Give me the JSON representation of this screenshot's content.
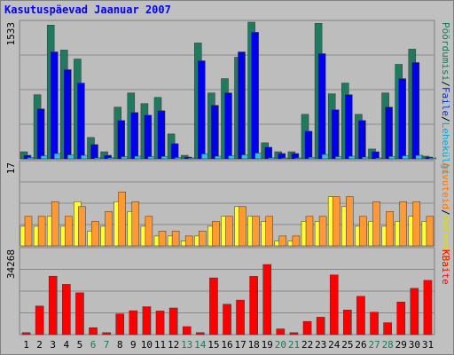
{
  "chart_data": {
    "type": "bar",
    "title": "Kasutuspäevad Jaanuar 2007",
    "categories": [
      "1",
      "2",
      "3",
      "4",
      "5",
      "6",
      "7",
      "8",
      "9",
      "10",
      "11",
      "12",
      "13",
      "14",
      "15",
      "16",
      "17",
      "18",
      "19",
      "20",
      "21",
      "22",
      "23",
      "24",
      "25",
      "26",
      "27",
      "28",
      "29",
      "30",
      "31"
    ],
    "weekend_days": [
      "6",
      "7",
      "13",
      "14",
      "20",
      "21",
      "27",
      "28"
    ],
    "panels": [
      {
        "id": "visits",
        "ymax_label": "1533",
        "ymax": 1533,
        "right_label_parts": [
          {
            "text": "Pöördumisi",
            "color": "#1a7a55"
          },
          {
            "text": "/",
            "color": "#000000"
          },
          {
            "text": "Faile",
            "color": "#0033cc"
          },
          {
            "text": "/",
            "color": "#000000"
          },
          {
            "text": "Lehekülgi",
            "color": "#00aadd"
          }
        ],
        "series": [
          {
            "values": [
              80,
              720,
              1500,
              1220,
              1120,
              240,
              80,
              580,
              740,
              620,
              690,
              280,
              40,
              1300,
              740,
              900,
              1140,
              1533,
              180,
              80,
              80,
              500,
              1520,
              730,
              850,
              500,
              110,
              740,
              1060,
              1230,
              30
            ],
            "color": "#1f7a60"
          },
          {
            "values": [
              40,
              560,
              1200,
              1000,
              850,
              160,
              40,
              430,
              520,
              490,
              540,
              170,
              20,
              1100,
              600,
              740,
              1200,
              1420,
              130,
              60,
              60,
              310,
              1180,
              550,
              720,
              430,
              80,
              580,
              900,
              1080,
              20
            ],
            "color": "#0000ee"
          },
          {
            "values": [
              15,
              35,
              60,
              45,
              40,
              12,
              12,
              25,
              30,
              25,
              28,
              15,
              8,
              55,
              30,
              35,
              45,
              65,
              12,
              8,
              8,
              18,
              50,
              25,
              30,
              20,
              10,
              28,
              35,
              40,
              5
            ],
            "color": "#33bbee"
          }
        ]
      },
      {
        "id": "hosts",
        "ymax_label": "17",
        "ymax": 17,
        "right_label_parts": [
          {
            "text": "Arvuteid",
            "color": "#ff7700"
          },
          {
            "text": "/",
            "color": "#000000"
          },
          {
            "text": "Külastusi",
            "color": "#dddd00"
          }
        ],
        "series": [
          {
            "values": [
              4,
              4,
              6,
              4,
              9,
              3,
              4,
              9,
              7,
              4,
              2,
              2,
              1,
              2,
              4,
              6,
              8,
              6,
              5,
              1,
              1,
              5,
              5,
              10,
              8,
              4,
              5,
              4,
              5,
              6,
              5
            ],
            "color": "#ffff33"
          },
          {
            "values": [
              6,
              6,
              9,
              6,
              8,
              5,
              7,
              11,
              9,
              6,
              3,
              3,
              2,
              3,
              5,
              6,
              8,
              6,
              6,
              2,
              2,
              6,
              6,
              10,
              10,
              6,
              9,
              7,
              9,
              9,
              6
            ],
            "color": "#ff9933"
          }
        ]
      },
      {
        "id": "bytes",
        "ymax_label": "34268",
        "ymax": 34268,
        "right_label_parts": [
          {
            "text": "KBaite",
            "color": "#ff0000"
          }
        ],
        "series": [
          {
            "values": [
              800,
              11500,
              23500,
              20200,
              16800,
              2800,
              800,
              8300,
              9600,
              11200,
              9500,
              10700,
              3200,
              800,
              22800,
              12200,
              13900,
              23400,
              28200,
              2300,
              800,
              5300,
              7000,
              24000,
              9900,
              15400,
              9000,
              4800,
              13100,
              18600,
              21800
            ],
            "color": "#ff0000"
          }
        ]
      }
    ],
    "colors": {
      "background": "#c0c0c0",
      "grid": "#7f7f7f",
      "title": "#0000ff",
      "weekday_label": "#000000",
      "weekend_label": "#1a7a55"
    }
  }
}
